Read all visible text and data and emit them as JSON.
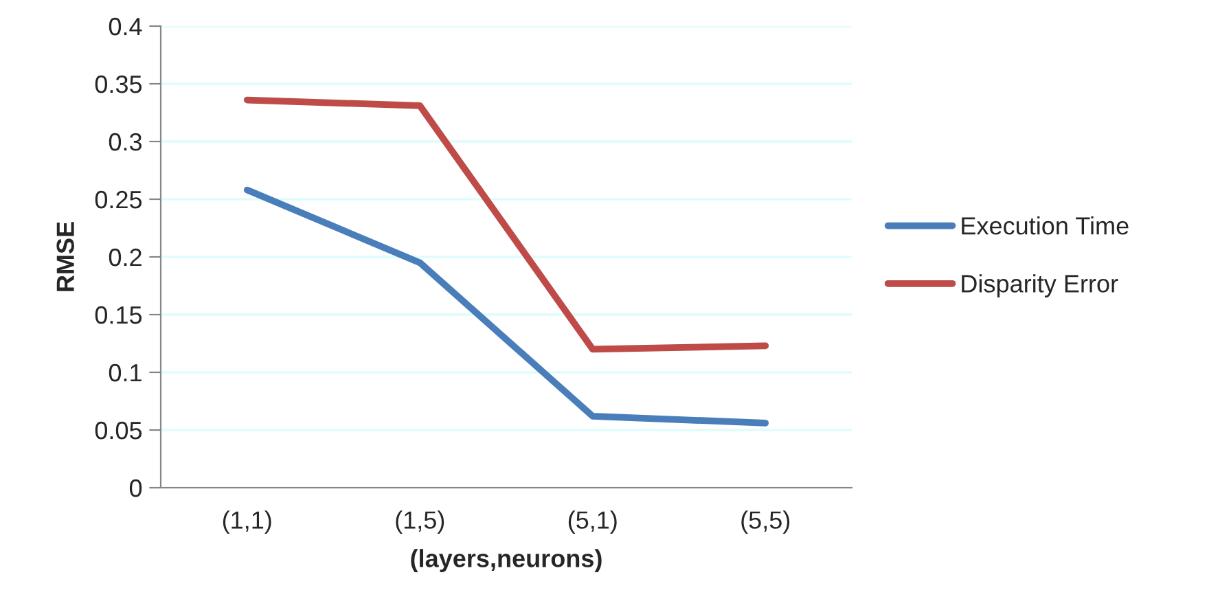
{
  "chart_data": {
    "type": "line",
    "xlabel": "(layers,neurons)",
    "ylabel": "RMSE",
    "categories": [
      "(1,1)",
      "(1,5)",
      "(5,1)",
      "(5,5)"
    ],
    "series": [
      {
        "name": "Execution Time",
        "color": "#4a7ebb",
        "values": [
          0.258,
          0.195,
          0.062,
          0.056
        ]
      },
      {
        "name": "Disparity Error",
        "color": "#be4b48",
        "values": [
          0.336,
          0.331,
          0.12,
          0.123
        ]
      }
    ],
    "ylim": [
      0,
      0.4
    ],
    "yticks": [
      0,
      0.05,
      0.1,
      0.15,
      0.2,
      0.25,
      0.3,
      0.35,
      0.4
    ],
    "grid": "y",
    "legend": "right",
    "marker": "none",
    "line_style": "solid"
  }
}
